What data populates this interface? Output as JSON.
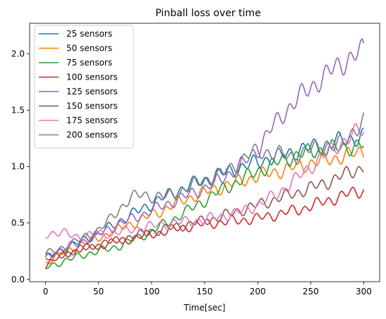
{
  "chart_data": {
    "type": "line",
    "title": "Pinball loss over time",
    "xlabel": "Time[sec]",
    "ylabel": "",
    "xlim": [
      -15,
      315
    ],
    "ylim": [
      -0.02,
      2.27
    ],
    "xticks": [
      0,
      50,
      100,
      150,
      200,
      250,
      300
    ],
    "yticks": [
      0.0,
      0.5,
      1.0,
      1.5,
      2.0
    ],
    "grid": false,
    "legend": "top-left",
    "x": [
      0,
      10,
      20,
      30,
      40,
      50,
      60,
      70,
      80,
      90,
      100,
      110,
      120,
      130,
      140,
      150,
      160,
      170,
      180,
      190,
      200,
      210,
      220,
      230,
      240,
      250,
      260,
      270,
      280,
      290,
      300
    ],
    "series": [
      {
        "name": "25 sensors",
        "color": "#1f77b4",
        "values": [
          0.18,
          0.24,
          0.28,
          0.32,
          0.37,
          0.4,
          0.46,
          0.52,
          0.57,
          0.62,
          0.67,
          0.72,
          0.77,
          0.81,
          0.85,
          0.88,
          0.92,
          0.95,
          0.98,
          1.01,
          1.04,
          1.07,
          1.09,
          1.12,
          1.15,
          1.17,
          1.19,
          1.21,
          1.23,
          1.25,
          1.27
        ]
      },
      {
        "name": "50 sensors",
        "color": "#ff7f0e",
        "values": [
          0.15,
          0.2,
          0.25,
          0.3,
          0.33,
          0.37,
          0.41,
          0.45,
          0.49,
          0.53,
          0.57,
          0.61,
          0.66,
          0.7,
          0.74,
          0.77,
          0.8,
          0.83,
          0.86,
          0.89,
          0.91,
          0.94,
          0.96,
          0.98,
          1.01,
          1.03,
          1.05,
          1.07,
          1.09,
          1.11,
          1.14
        ]
      },
      {
        "name": "75 sensors",
        "color": "#2ca02c",
        "values": [
          0.1,
          0.14,
          0.17,
          0.2,
          0.23,
          0.25,
          0.27,
          0.3,
          0.34,
          0.38,
          0.43,
          0.48,
          0.53,
          0.59,
          0.64,
          0.7,
          0.76,
          0.81,
          0.86,
          0.91,
          0.96,
          1.0,
          1.04,
          1.08,
          1.11,
          1.13,
          1.15,
          1.16,
          1.17,
          1.18,
          1.19
        ]
      },
      {
        "name": "100 sensors",
        "color": "#d62728",
        "values": [
          0.12,
          0.18,
          0.23,
          0.26,
          0.28,
          0.3,
          0.32,
          0.34,
          0.36,
          0.38,
          0.4,
          0.42,
          0.44,
          0.46,
          0.48,
          0.49,
          0.5,
          0.51,
          0.52,
          0.53,
          0.54,
          0.56,
          0.58,
          0.6,
          0.62,
          0.65,
          0.68,
          0.71,
          0.74,
          0.77,
          0.79
        ]
      },
      {
        "name": "125 sensors",
        "color": "#9467bd",
        "values": [
          0.2,
          0.25,
          0.28,
          0.32,
          0.36,
          0.4,
          0.45,
          0.49,
          0.53,
          0.57,
          0.61,
          0.65,
          0.69,
          0.73,
          0.77,
          0.81,
          0.86,
          0.92,
          0.98,
          1.06,
          1.15,
          1.3,
          1.42,
          1.53,
          1.62,
          1.7,
          1.78,
          1.85,
          1.92,
          1.98,
          2.02
        ]
      },
      {
        "name": "150 sensors",
        "color": "#8c564b",
        "values": [
          0.18,
          0.2,
          0.23,
          0.26,
          0.28,
          0.31,
          0.33,
          0.35,
          0.38,
          0.4,
          0.42,
          0.44,
          0.46,
          0.48,
          0.5,
          0.52,
          0.54,
          0.57,
          0.6,
          0.63,
          0.66,
          0.69,
          0.72,
          0.75,
          0.78,
          0.81,
          0.84,
          0.88,
          0.92,
          0.96,
          1.0
        ]
      },
      {
        "name": "175 sensors",
        "color": "#e377c2",
        "values": [
          0.4,
          0.42,
          0.4,
          0.38,
          0.39,
          0.4,
          0.41,
          0.42,
          0.44,
          0.46,
          0.47,
          0.49,
          0.5,
          0.51,
          0.52,
          0.53,
          0.55,
          0.57,
          0.59,
          0.62,
          0.66,
          0.71,
          0.77,
          0.84,
          0.92,
          1.0,
          1.08,
          1.15,
          1.22,
          1.28,
          1.33
        ]
      },
      {
        "name": "200 sensors",
        "color": "#7f7f7f",
        "values": [
          0.22,
          0.26,
          0.3,
          0.34,
          0.39,
          0.44,
          0.52,
          0.63,
          0.72,
          0.75,
          0.74,
          0.73,
          0.75,
          0.79,
          0.84,
          0.88,
          0.91,
          0.95,
          1.02,
          1.1,
          1.13,
          1.13,
          1.11,
          1.09,
          1.1,
          1.15,
          1.18,
          1.18,
          1.2,
          1.32,
          1.4
        ]
      }
    ]
  }
}
